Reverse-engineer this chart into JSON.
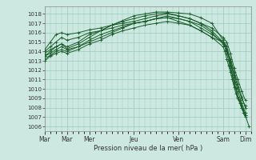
{
  "xlabel": "Pression niveau de la mer( hPa )",
  "bg_color": "#cce8e0",
  "grid_color": "#99ccbb",
  "line_color": "#1a5c2a",
  "ylim": [
    1005.5,
    1018.8
  ],
  "yticks": [
    1006,
    1007,
    1008,
    1009,
    1010,
    1011,
    1012,
    1013,
    1014,
    1015,
    1016,
    1017,
    1018
  ],
  "xtick_labels": [
    "Mar",
    "Mar",
    "Mer",
    "Jeu",
    "Ven",
    "Sam",
    "Dim"
  ],
  "xtick_positions": [
    0,
    24,
    48,
    96,
    144,
    192,
    216
  ],
  "xlim": [
    0,
    222
  ],
  "lines": [
    {
      "x": [
        0,
        6,
        12,
        18,
        24,
        36,
        48,
        60,
        72,
        84,
        96,
        108,
        120,
        132,
        144,
        156,
        168,
        180,
        192,
        196,
        200,
        204,
        208,
        212,
        216,
        220
      ],
      "y": [
        1013.5,
        1014.0,
        1014.5,
        1014.8,
        1014.3,
        1014.8,
        1015.5,
        1016.2,
        1016.8,
        1017.3,
        1017.8,
        1018.0,
        1018.2,
        1018.2,
        1018.1,
        1018.0,
        1017.6,
        1017.0,
        1015.2,
        1014.5,
        1012.5,
        1010.5,
        1009.2,
        1008.0,
        1007.2,
        1006.0
      ]
    },
    {
      "x": [
        0,
        6,
        12,
        18,
        24,
        36,
        48,
        60,
        72,
        84,
        96,
        108,
        120,
        132,
        144,
        156,
        168,
        180,
        192,
        196,
        200,
        204,
        208,
        212,
        216
      ],
      "y": [
        1014.2,
        1015.0,
        1015.8,
        1016.0,
        1015.8,
        1016.0,
        1016.3,
        1016.5,
        1016.8,
        1017.0,
        1017.2,
        1017.5,
        1017.8,
        1018.0,
        1017.8,
        1017.5,
        1017.0,
        1016.5,
        1015.5,
        1015.0,
        1013.8,
        1012.2,
        1011.0,
        1009.8,
        1008.8
      ]
    },
    {
      "x": [
        0,
        6,
        12,
        18,
        24,
        36,
        48,
        60,
        72,
        84,
        96,
        108,
        120,
        132,
        144,
        156,
        168,
        180,
        192,
        196,
        200,
        204,
        208,
        212,
        216
      ],
      "y": [
        1013.8,
        1014.2,
        1014.5,
        1014.8,
        1014.5,
        1015.0,
        1015.8,
        1016.2,
        1016.8,
        1017.2,
        1017.5,
        1017.8,
        1018.0,
        1018.1,
        1017.8,
        1017.5,
        1017.0,
        1016.2,
        1015.0,
        1014.0,
        1013.0,
        1011.5,
        1010.2,
        1009.0,
        1008.2
      ]
    },
    {
      "x": [
        0,
        6,
        12,
        18,
        24,
        36,
        48,
        60,
        72,
        84,
        96,
        108,
        120,
        132,
        144,
        156,
        168,
        180,
        192,
        196,
        200,
        204,
        208,
        212,
        216
      ],
      "y": [
        1013.2,
        1013.6,
        1014.0,
        1014.2,
        1014.0,
        1014.5,
        1015.2,
        1015.8,
        1016.2,
        1016.6,
        1017.0,
        1017.2,
        1017.5,
        1017.6,
        1017.5,
        1017.2,
        1016.8,
        1016.0,
        1014.8,
        1014.2,
        1012.8,
        1011.2,
        1009.8,
        1008.5,
        1007.5
      ]
    },
    {
      "x": [
        0,
        6,
        12,
        18,
        24,
        36,
        48,
        60,
        72,
        84,
        96,
        108,
        120,
        132,
        144,
        156,
        168,
        180,
        192,
        196,
        200,
        204,
        208,
        212,
        216
      ],
      "y": [
        1013.5,
        1013.8,
        1014.2,
        1014.5,
        1014.2,
        1014.5,
        1015.0,
        1015.5,
        1016.0,
        1016.5,
        1017.0,
        1017.2,
        1017.5,
        1017.8,
        1017.5,
        1017.2,
        1016.5,
        1015.8,
        1015.0,
        1014.5,
        1013.2,
        1011.8,
        1010.5,
        1009.2,
        1008.0
      ]
    },
    {
      "x": [
        0,
        6,
        12,
        18,
        24,
        36,
        48,
        60,
        72,
        84,
        96,
        108,
        120,
        132,
        144,
        156,
        168,
        180,
        192,
        194,
        196,
        198,
        200,
        202,
        204,
        206,
        208,
        210,
        212,
        214,
        216
      ],
      "y": [
        1013.0,
        1013.5,
        1013.8,
        1014.0,
        1013.8,
        1014.2,
        1014.8,
        1015.2,
        1015.8,
        1016.2,
        1016.5,
        1016.8,
        1017.0,
        1017.2,
        1017.0,
        1016.8,
        1016.2,
        1015.5,
        1014.5,
        1014.0,
        1013.2,
        1012.5,
        1011.8,
        1011.0,
        1010.2,
        1009.5,
        1009.0,
        1008.5,
        1008.0,
        1007.5,
        1007.0
      ]
    },
    {
      "x": [
        0,
        6,
        12,
        18,
        24,
        36,
        48,
        60,
        72,
        84,
        96,
        108,
        120,
        132,
        144,
        156,
        168,
        180,
        192,
        194,
        196,
        198,
        200,
        202,
        204,
        206,
        208,
        210,
        212,
        214,
        216
      ],
      "y": [
        1014.0,
        1014.5,
        1015.0,
        1015.5,
        1015.2,
        1015.5,
        1016.0,
        1016.2,
        1016.5,
        1016.8,
        1017.0,
        1017.2,
        1017.5,
        1017.6,
        1017.2,
        1016.8,
        1016.2,
        1015.5,
        1015.0,
        1014.5,
        1013.8,
        1013.0,
        1012.2,
        1011.5,
        1010.8,
        1010.0,
        1009.2,
        1008.8,
        1008.2,
        1007.8,
        1007.2
      ]
    }
  ]
}
